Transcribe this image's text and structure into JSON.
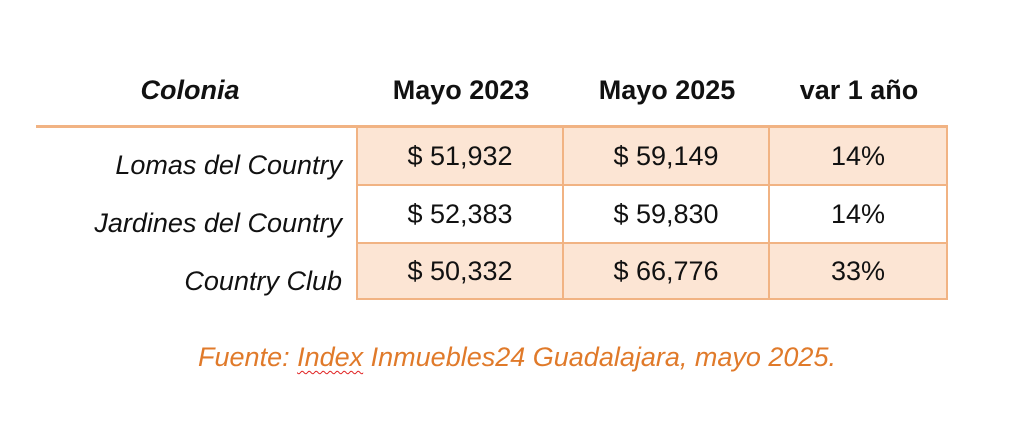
{
  "table": {
    "headers": {
      "colonia": "Colonia",
      "col1": "Mayo 2023",
      "col2": "Mayo 2025",
      "col3": "var 1 año"
    },
    "rows": [
      {
        "colonia": "Lomas del Country",
        "mayo_2023": "$ 51,932",
        "mayo_2025": "$ 59,149",
        "var": "14%"
      },
      {
        "colonia": "Jardines del Country",
        "mayo_2023": "$ 52,383",
        "mayo_2025": "$ 59,830",
        "var": "14%"
      },
      {
        "colonia": "Country Club",
        "mayo_2023": "$ 50,332",
        "mayo_2025": "$ 66,776",
        "var": "33%"
      }
    ]
  },
  "source": {
    "prefix": "Fuente: ",
    "flagged_word": "Index",
    "suffix": " Inmuebles24 Guadalajara, mayo 2025."
  },
  "colors": {
    "border": "#f1b383",
    "shade": "#fce5d4",
    "source_text": "#e07a2a",
    "spellcheck": "#e02020"
  }
}
